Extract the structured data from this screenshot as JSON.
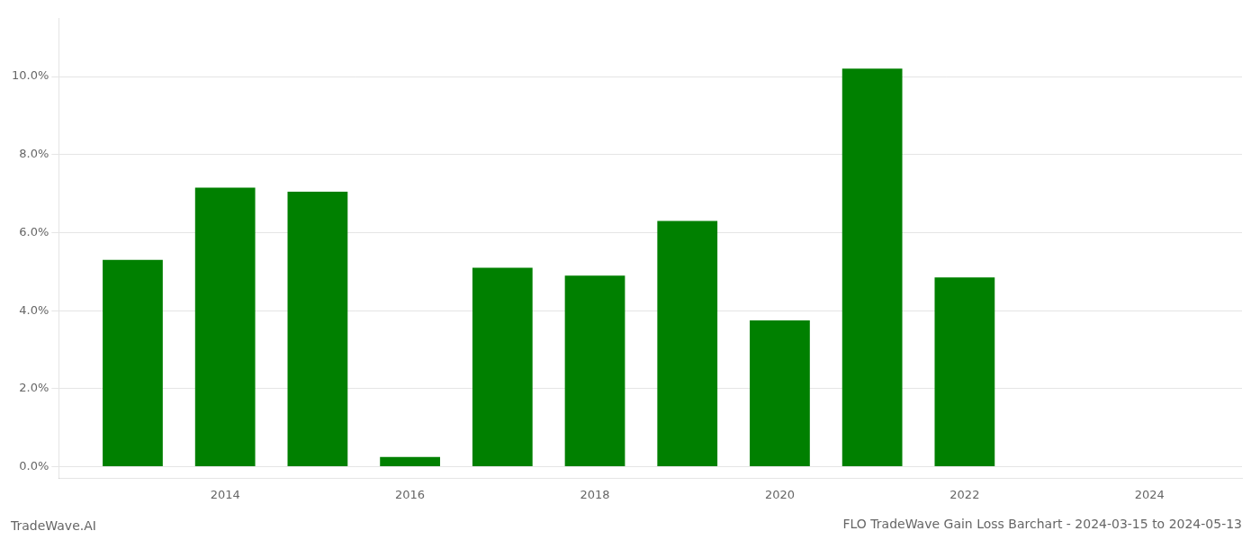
{
  "chart_data": {
    "type": "bar",
    "title": "FLO TradeWave Gain Loss Barchart - 2024-03-15 to 2024-05-13",
    "annotations": [
      "TradeWave.AI"
    ],
    "x": [
      2013,
      2014,
      2015,
      2016,
      2017,
      2018,
      2019,
      2020,
      2021,
      2022,
      2023
    ],
    "values": [
      0.053,
      0.0715,
      0.0705,
      0.0025,
      0.051,
      0.049,
      0.063,
      0.0375,
      0.102,
      0.0485,
      0.0
    ],
    "color": "#008000",
    "xlim": [
      2012.2,
      2025.0
    ],
    "xticks": [
      2014,
      2016,
      2018,
      2020,
      2022,
      2024
    ],
    "ylim": [
      -0.003,
      0.115
    ],
    "yticks": [
      {
        "value": 0.0,
        "label": "0.0%"
      },
      {
        "value": 0.02,
        "label": "2.0%"
      },
      {
        "value": 0.04,
        "label": "4.0%"
      },
      {
        "value": 0.06,
        "label": "6.0%"
      },
      {
        "value": 0.08,
        "label": "8.0%"
      },
      {
        "value": 0.1,
        "label": "10.0%"
      }
    ],
    "grid": "y"
  }
}
